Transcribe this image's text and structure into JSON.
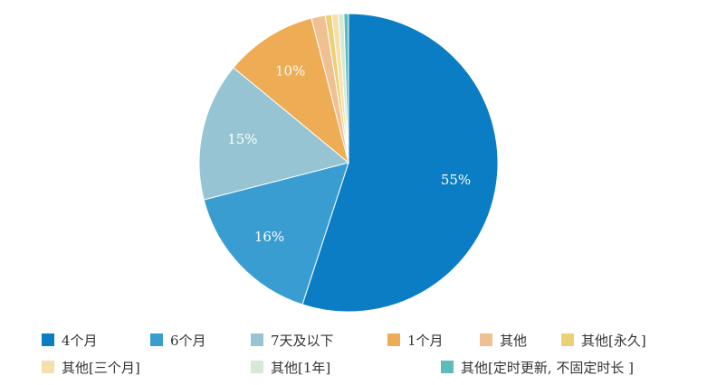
{
  "chart_data": {
    "type": "pie",
    "slices": [
      {
        "label": "4个月",
        "value": 55,
        "color": "#0a7dc4",
        "value_label": "55%"
      },
      {
        "label": "6个月",
        "value": 16,
        "color": "#3a9dd2",
        "value_label": "16%"
      },
      {
        "label": "7天及以下",
        "value": 15,
        "color": "#96c4d2",
        "value_label": "15%"
      },
      {
        "label": "1个月",
        "value": 10,
        "color": "#eeac54",
        "value_label": "10%"
      },
      {
        "label": "其他",
        "value": 1.5,
        "color": "#f0c092",
        "value_label": ""
      },
      {
        "label": "其他[永久]",
        "value": 0.7,
        "color": "#ead176",
        "value_label": ""
      },
      {
        "label": "其他[三个月]",
        "value": 0.7,
        "color": "#f5dfaa",
        "value_label": ""
      },
      {
        "label": "其他[1年]",
        "value": 0.6,
        "color": "#d6e9d6",
        "value_label": ""
      },
      {
        "label": "其他[定时更新, 不固定时长 ]",
        "value": 0.5,
        "color": "#5ebcb8",
        "value_label": ""
      }
    ],
    "start_angle_deg": 0,
    "direction": "clockwise",
    "legend": "bottom"
  }
}
